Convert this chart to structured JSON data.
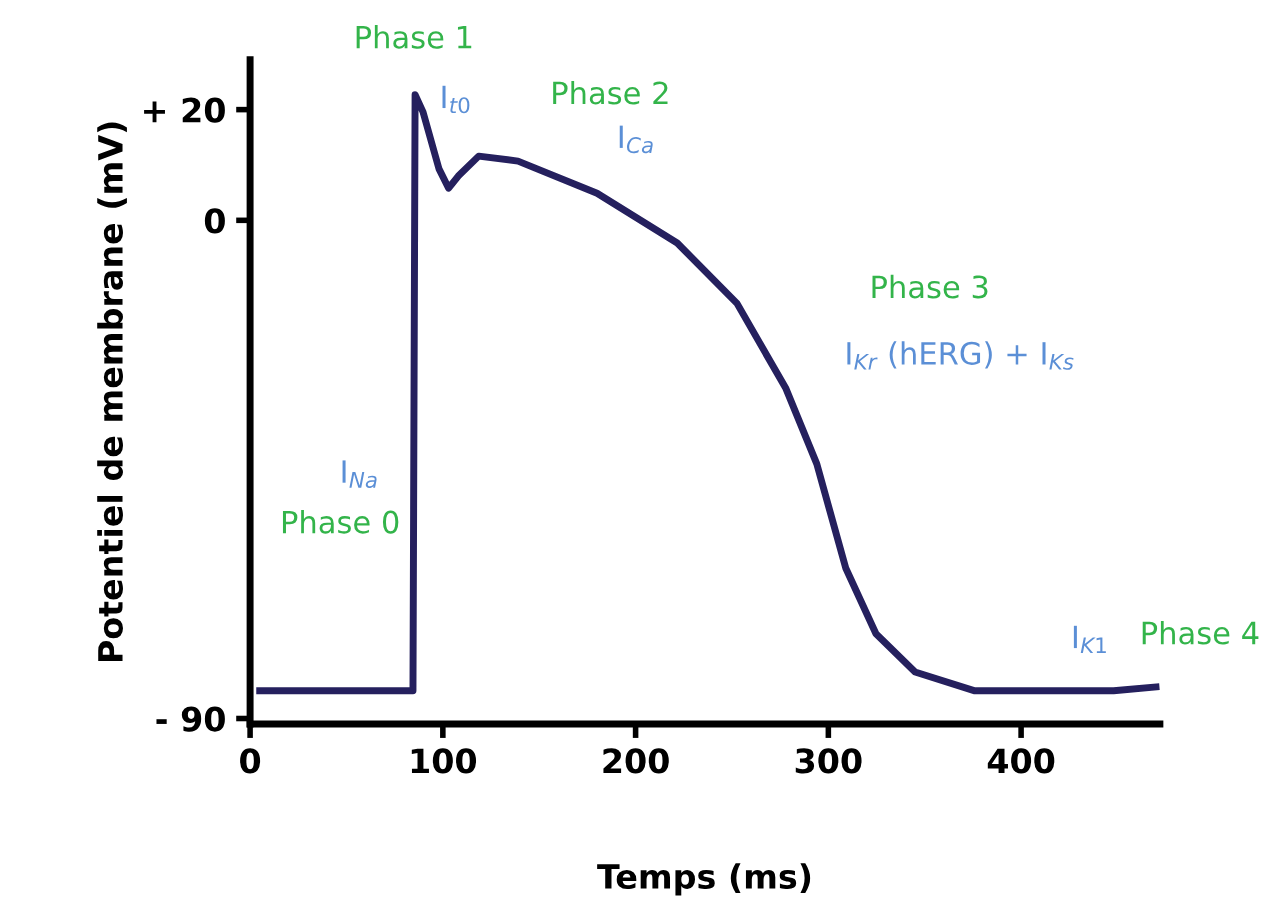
{
  "chart_data": {
    "type": "line",
    "xlabel": "Temps (ms)",
    "ylabel": "Potentiel de membrane (mV)",
    "x": [
      5,
      84.5,
      85.6,
      89.7,
      98,
      103,
      108,
      118.6,
      139,
      180,
      221.6,
      252.6,
      278,
      294,
      309,
      324.7,
      345,
      376,
      448,
      470
    ],
    "series": [
      {
        "color": "#25205e",
        "values": [
          -85,
          -85,
          22.7,
          19.6,
          9.3,
          5.8,
          8,
          11.6,
          10.7,
          4.9,
          -4.1,
          -15,
          -30.4,
          -44,
          -62.8,
          -74.7,
          -81.6,
          -85,
          -85,
          -84.3
        ]
      }
    ],
    "xlim": [
      0,
      472
    ],
    "ylim": [
      -91,
      29
    ],
    "xticks": [
      0,
      100,
      200,
      300,
      400
    ],
    "yticks": [
      {
        "value": 20,
        "label": "+ 20"
      },
      0,
      {
        "value": -90,
        "label": "- 90"
      }
    ],
    "grid": false,
    "legend": false,
    "marker": "none",
    "line_style": "solid",
    "annotations": [
      "Phase 1",
      "I$_{t0}$",
      "Phase 2",
      "I$_{Ca}$",
      "Phase 3",
      "I$_{Kr}$ (hERG) + I$_{Ks}$",
      "I$_{Na}$",
      "Phase 0",
      "I$_{K1}$",
      "Phase 4"
    ]
  }
}
